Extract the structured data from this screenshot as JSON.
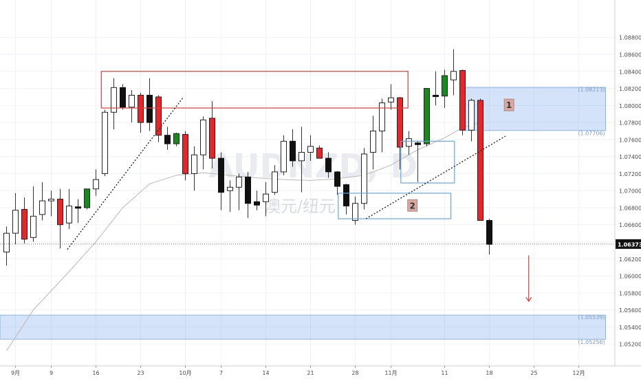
{
  "chart_data": {
    "type": "candlestick",
    "symbol_watermark": "AUDNZD, D",
    "watermark_subtitle": "澳元/纽元",
    "y_axis": {
      "ylim": [
        1.0506,
        1.0904
      ],
      "tick_labels": [
        "1.08800",
        "1.08600",
        "1.08400",
        "1.08200",
        "1.08000",
        "1.07800",
        "1.07600",
        "1.07400",
        "1.07200",
        "1.07000",
        "1.06800",
        "1.06600",
        "1.06400",
        "1.06200",
        "1.06000",
        "1.05800",
        "1.05600",
        "1.05400",
        "1.05200"
      ],
      "last_price_label": "1.06373",
      "last_price": 1.06373
    },
    "x_axis": {
      "tick_labels": [
        {
          "label": "9月",
          "index": 1
        },
        {
          "label": "9",
          "index": 5
        },
        {
          "label": "16",
          "index": 10
        },
        {
          "label": "23",
          "index": 15
        },
        {
          "label": "10月",
          "index": 20
        },
        {
          "label": "7",
          "index": 24
        },
        {
          "label": "14",
          "index": 29
        },
        {
          "label": "21",
          "index": 34
        },
        {
          "label": "28",
          "index": 39
        },
        {
          "label": "11月",
          "index": 43
        },
        {
          "label": "11",
          "index": 49
        },
        {
          "label": "18",
          "index": 54
        },
        {
          "label": "25",
          "index": 59
        },
        {
          "label": "12月",
          "index": 64
        }
      ]
    },
    "candles": [
      {
        "o": 1.0628,
        "h": 1.0658,
        "l": 1.0612,
        "c": 1.065,
        "t": "up"
      },
      {
        "o": 1.065,
        "h": 1.0697,
        "l": 1.0637,
        "c": 1.0677,
        "t": "up"
      },
      {
        "o": 1.0678,
        "h": 1.0692,
        "l": 1.0638,
        "c": 1.0643,
        "t": "down"
      },
      {
        "o": 1.0645,
        "h": 1.0705,
        "l": 1.064,
        "c": 1.067,
        "t": "up"
      },
      {
        "o": 1.0672,
        "h": 1.071,
        "l": 1.0665,
        "c": 1.0688,
        "t": "up"
      },
      {
        "o": 1.0688,
        "h": 1.07,
        "l": 1.067,
        "c": 1.069,
        "t": "up"
      },
      {
        "o": 1.069,
        "h": 1.0702,
        "l": 1.0632,
        "c": 1.066,
        "t": "down"
      },
      {
        "o": 1.0662,
        "h": 1.0702,
        "l": 1.0655,
        "c": 1.0682,
        "t": "up"
      },
      {
        "o": 1.068,
        "h": 1.069,
        "l": 1.0662,
        "c": 1.0681,
        "t": "flat"
      },
      {
        "o": 1.068,
        "h": 1.07,
        "l": 1.0678,
        "c": 1.0702,
        "t": "green"
      },
      {
        "o": 1.0702,
        "h": 1.0725,
        "l": 1.0694,
        "c": 1.0713,
        "t": "up"
      },
      {
        "o": 1.072,
        "h": 1.0795,
        "l": 1.0717,
        "c": 1.0792,
        "t": "up"
      },
      {
        "o": 1.0792,
        "h": 1.0832,
        "l": 1.0772,
        "c": 1.0821,
        "t": "up"
      },
      {
        "o": 1.0821,
        "h": 1.0825,
        "l": 1.0795,
        "c": 1.0798,
        "t": "black"
      },
      {
        "o": 1.0798,
        "h": 1.0818,
        "l": 1.078,
        "c": 1.0812,
        "t": "up"
      },
      {
        "o": 1.0812,
        "h": 1.0815,
        "l": 1.0768,
        "c": 1.078,
        "t": "down"
      },
      {
        "o": 1.0812,
        "h": 1.0832,
        "l": 1.077,
        "c": 1.078,
        "t": "black"
      },
      {
        "o": 1.081,
        "h": 1.0812,
        "l": 1.0757,
        "c": 1.0765,
        "t": "down"
      },
      {
        "o": 1.0765,
        "h": 1.0775,
        "l": 1.0748,
        "c": 1.0755,
        "t": "black"
      },
      {
        "o": 1.0755,
        "h": 1.0768,
        "l": 1.0752,
        "c": 1.0767,
        "t": "green"
      },
      {
        "o": 1.0766,
        "h": 1.077,
        "l": 1.0712,
        "c": 1.072,
        "t": "down"
      },
      {
        "o": 1.072,
        "h": 1.0752,
        "l": 1.07,
        "c": 1.0742,
        "t": "up"
      },
      {
        "o": 1.0742,
        "h": 1.0787,
        "l": 1.0725,
        "c": 1.0783,
        "t": "up"
      },
      {
        "o": 1.0785,
        "h": 1.0805,
        "l": 1.0726,
        "c": 1.0738,
        "t": "down"
      },
      {
        "o": 1.0738,
        "h": 1.0745,
        "l": 1.0677,
        "c": 1.0698,
        "t": "black"
      },
      {
        "o": 1.07,
        "h": 1.0712,
        "l": 1.0675,
        "c": 1.0704,
        "t": "up"
      },
      {
        "o": 1.0704,
        "h": 1.072,
        "l": 1.0677,
        "c": 1.0716,
        "t": "up"
      },
      {
        "o": 1.0716,
        "h": 1.0722,
        "l": 1.0668,
        "c": 1.0685,
        "t": "black"
      },
      {
        "o": 1.0687,
        "h": 1.07,
        "l": 1.0677,
        "c": 1.0683,
        "t": "black"
      },
      {
        "o": 1.0687,
        "h": 1.071,
        "l": 1.067,
        "c": 1.0696,
        "t": "up"
      },
      {
        "o": 1.0698,
        "h": 1.073,
        "l": 1.0695,
        "c": 1.0722,
        "t": "up"
      },
      {
        "o": 1.0722,
        "h": 1.0765,
        "l": 1.0718,
        "c": 1.0758,
        "t": "up"
      },
      {
        "o": 1.0758,
        "h": 1.0772,
        "l": 1.0728,
        "c": 1.0735,
        "t": "black"
      },
      {
        "o": 1.0735,
        "h": 1.0775,
        "l": 1.0698,
        "c": 1.0745,
        "t": "up"
      },
      {
        "o": 1.0745,
        "h": 1.0765,
        "l": 1.0735,
        "c": 1.0752,
        "t": "up"
      },
      {
        "o": 1.075,
        "h": 1.0753,
        "l": 1.0738,
        "c": 1.0738,
        "t": "down"
      },
      {
        "o": 1.0738,
        "h": 1.0745,
        "l": 1.0715,
        "c": 1.0722,
        "t": "black"
      },
      {
        "o": 1.0722,
        "h": 1.0723,
        "l": 1.0695,
        "c": 1.0705,
        "t": "black"
      },
      {
        "o": 1.0707,
        "h": 1.0708,
        "l": 1.0672,
        "c": 1.0682,
        "t": "black"
      },
      {
        "o": 1.0665,
        "h": 1.0693,
        "l": 1.066,
        "c": 1.0685,
        "t": "up"
      },
      {
        "o": 1.0685,
        "h": 1.075,
        "l": 1.0678,
        "c": 1.0743,
        "t": "up"
      },
      {
        "o": 1.0745,
        "h": 1.0788,
        "l": 1.0725,
        "c": 1.077,
        "t": "up"
      },
      {
        "o": 1.077,
        "h": 1.0808,
        "l": 1.0745,
        "c": 1.0803,
        "t": "up"
      },
      {
        "o": 1.0804,
        "h": 1.0825,
        "l": 1.0795,
        "c": 1.0809,
        "t": "up"
      },
      {
        "o": 1.0809,
        "h": 1.081,
        "l": 1.0725,
        "c": 1.0751,
        "t": "down"
      },
      {
        "o": 1.0752,
        "h": 1.077,
        "l": 1.0742,
        "c": 1.0761,
        "t": "up"
      },
      {
        "o": 1.0756,
        "h": 1.0758,
        "l": 1.071,
        "c": 1.0754,
        "t": "flat"
      },
      {
        "o": 1.0755,
        "h": 1.082,
        "l": 1.0752,
        "c": 1.082,
        "t": "green"
      },
      {
        "o": 1.0811,
        "h": 1.084,
        "l": 1.08,
        "c": 1.0812,
        "t": "black"
      },
      {
        "o": 1.0811,
        "h": 1.0842,
        "l": 1.0797,
        "c": 1.0835,
        "t": "green"
      },
      {
        "o": 1.083,
        "h": 1.0866,
        "l": 1.0812,
        "c": 1.084,
        "t": "up"
      },
      {
        "o": 1.0841,
        "h": 1.0842,
        "l": 1.0765,
        "c": 1.0771,
        "t": "down"
      },
      {
        "o": 1.0771,
        "h": 1.0808,
        "l": 1.0758,
        "c": 1.0806,
        "t": "up"
      },
      {
        "o": 1.0806,
        "h": 1.0808,
        "l": 1.0665,
        "c": 1.0665,
        "t": "down"
      },
      {
        "o": 1.0665,
        "h": 1.0667,
        "l": 1.0625,
        "c": 1.0637,
        "t": "black"
      }
    ],
    "moving_average": [
      {
        "i": 0,
        "v": 1.0512
      },
      {
        "i": 3,
        "v": 1.056
      },
      {
        "i": 7,
        "v": 1.0605
      },
      {
        "i": 10,
        "v": 1.064
      },
      {
        "i": 13,
        "v": 1.068
      },
      {
        "i": 16,
        "v": 1.0708
      },
      {
        "i": 19,
        "v": 1.0718
      },
      {
        "i": 22,
        "v": 1.0721
      },
      {
        "i": 25,
        "v": 1.0718
      },
      {
        "i": 28,
        "v": 1.0715
      },
      {
        "i": 31,
        "v": 1.0713
      },
      {
        "i": 34,
        "v": 1.0712
      },
      {
        "i": 37,
        "v": 1.0714
      },
      {
        "i": 40,
        "v": 1.0718
      },
      {
        "i": 43,
        "v": 1.073
      },
      {
        "i": 46,
        "v": 1.0748
      },
      {
        "i": 49,
        "v": 1.0762
      },
      {
        "i": 51,
        "v": 1.0774
      },
      {
        "i": 53,
        "v": 1.078
      }
    ],
    "annotations": {
      "zones": [
        {
          "y1": 1.08213,
          "y2": 1.07706,
          "from": 51.0,
          "to": 67,
          "label_top": "(1.08213)",
          "label_bottom": "(1.07706)"
        },
        {
          "y1": 1.05539,
          "y2": 1.05256,
          "from": -1,
          "to": 67,
          "label_top": "(1.05539)",
          "label_bottom": "(1.05256)"
        }
      ],
      "boxes": [
        {
          "x1": 10.6,
          "x2": 44.9,
          "y1": 1.084,
          "y2": 1.0797,
          "color": "#e53935"
        },
        {
          "x1": 44.1,
          "x2": 50.1,
          "y1": 1.0758,
          "y2": 1.0709,
          "color": "#64a8e0"
        },
        {
          "x1": 37.1,
          "x2": 49.7,
          "y1": 1.0697,
          "y2": 1.0667,
          "color": "#64a8e0"
        }
      ],
      "number_labels": [
        {
          "text": "1",
          "x": 56.2,
          "y": 1.0801
        },
        {
          "text": "2",
          "x": 45.4,
          "y": 1.0683
        }
      ],
      "trendlines": [
        {
          "x1": 6.8,
          "y1": 1.0631,
          "x2": 19.8,
          "y2": 1.081
        },
        {
          "x1": 40.2,
          "y1": 1.0667,
          "x2": 55.8,
          "y2": 1.0764
        }
      ],
      "arrow": {
        "x": 58.4,
        "from": 1.0624,
        "to": 1.057,
        "color": "#e53935"
      }
    }
  }
}
